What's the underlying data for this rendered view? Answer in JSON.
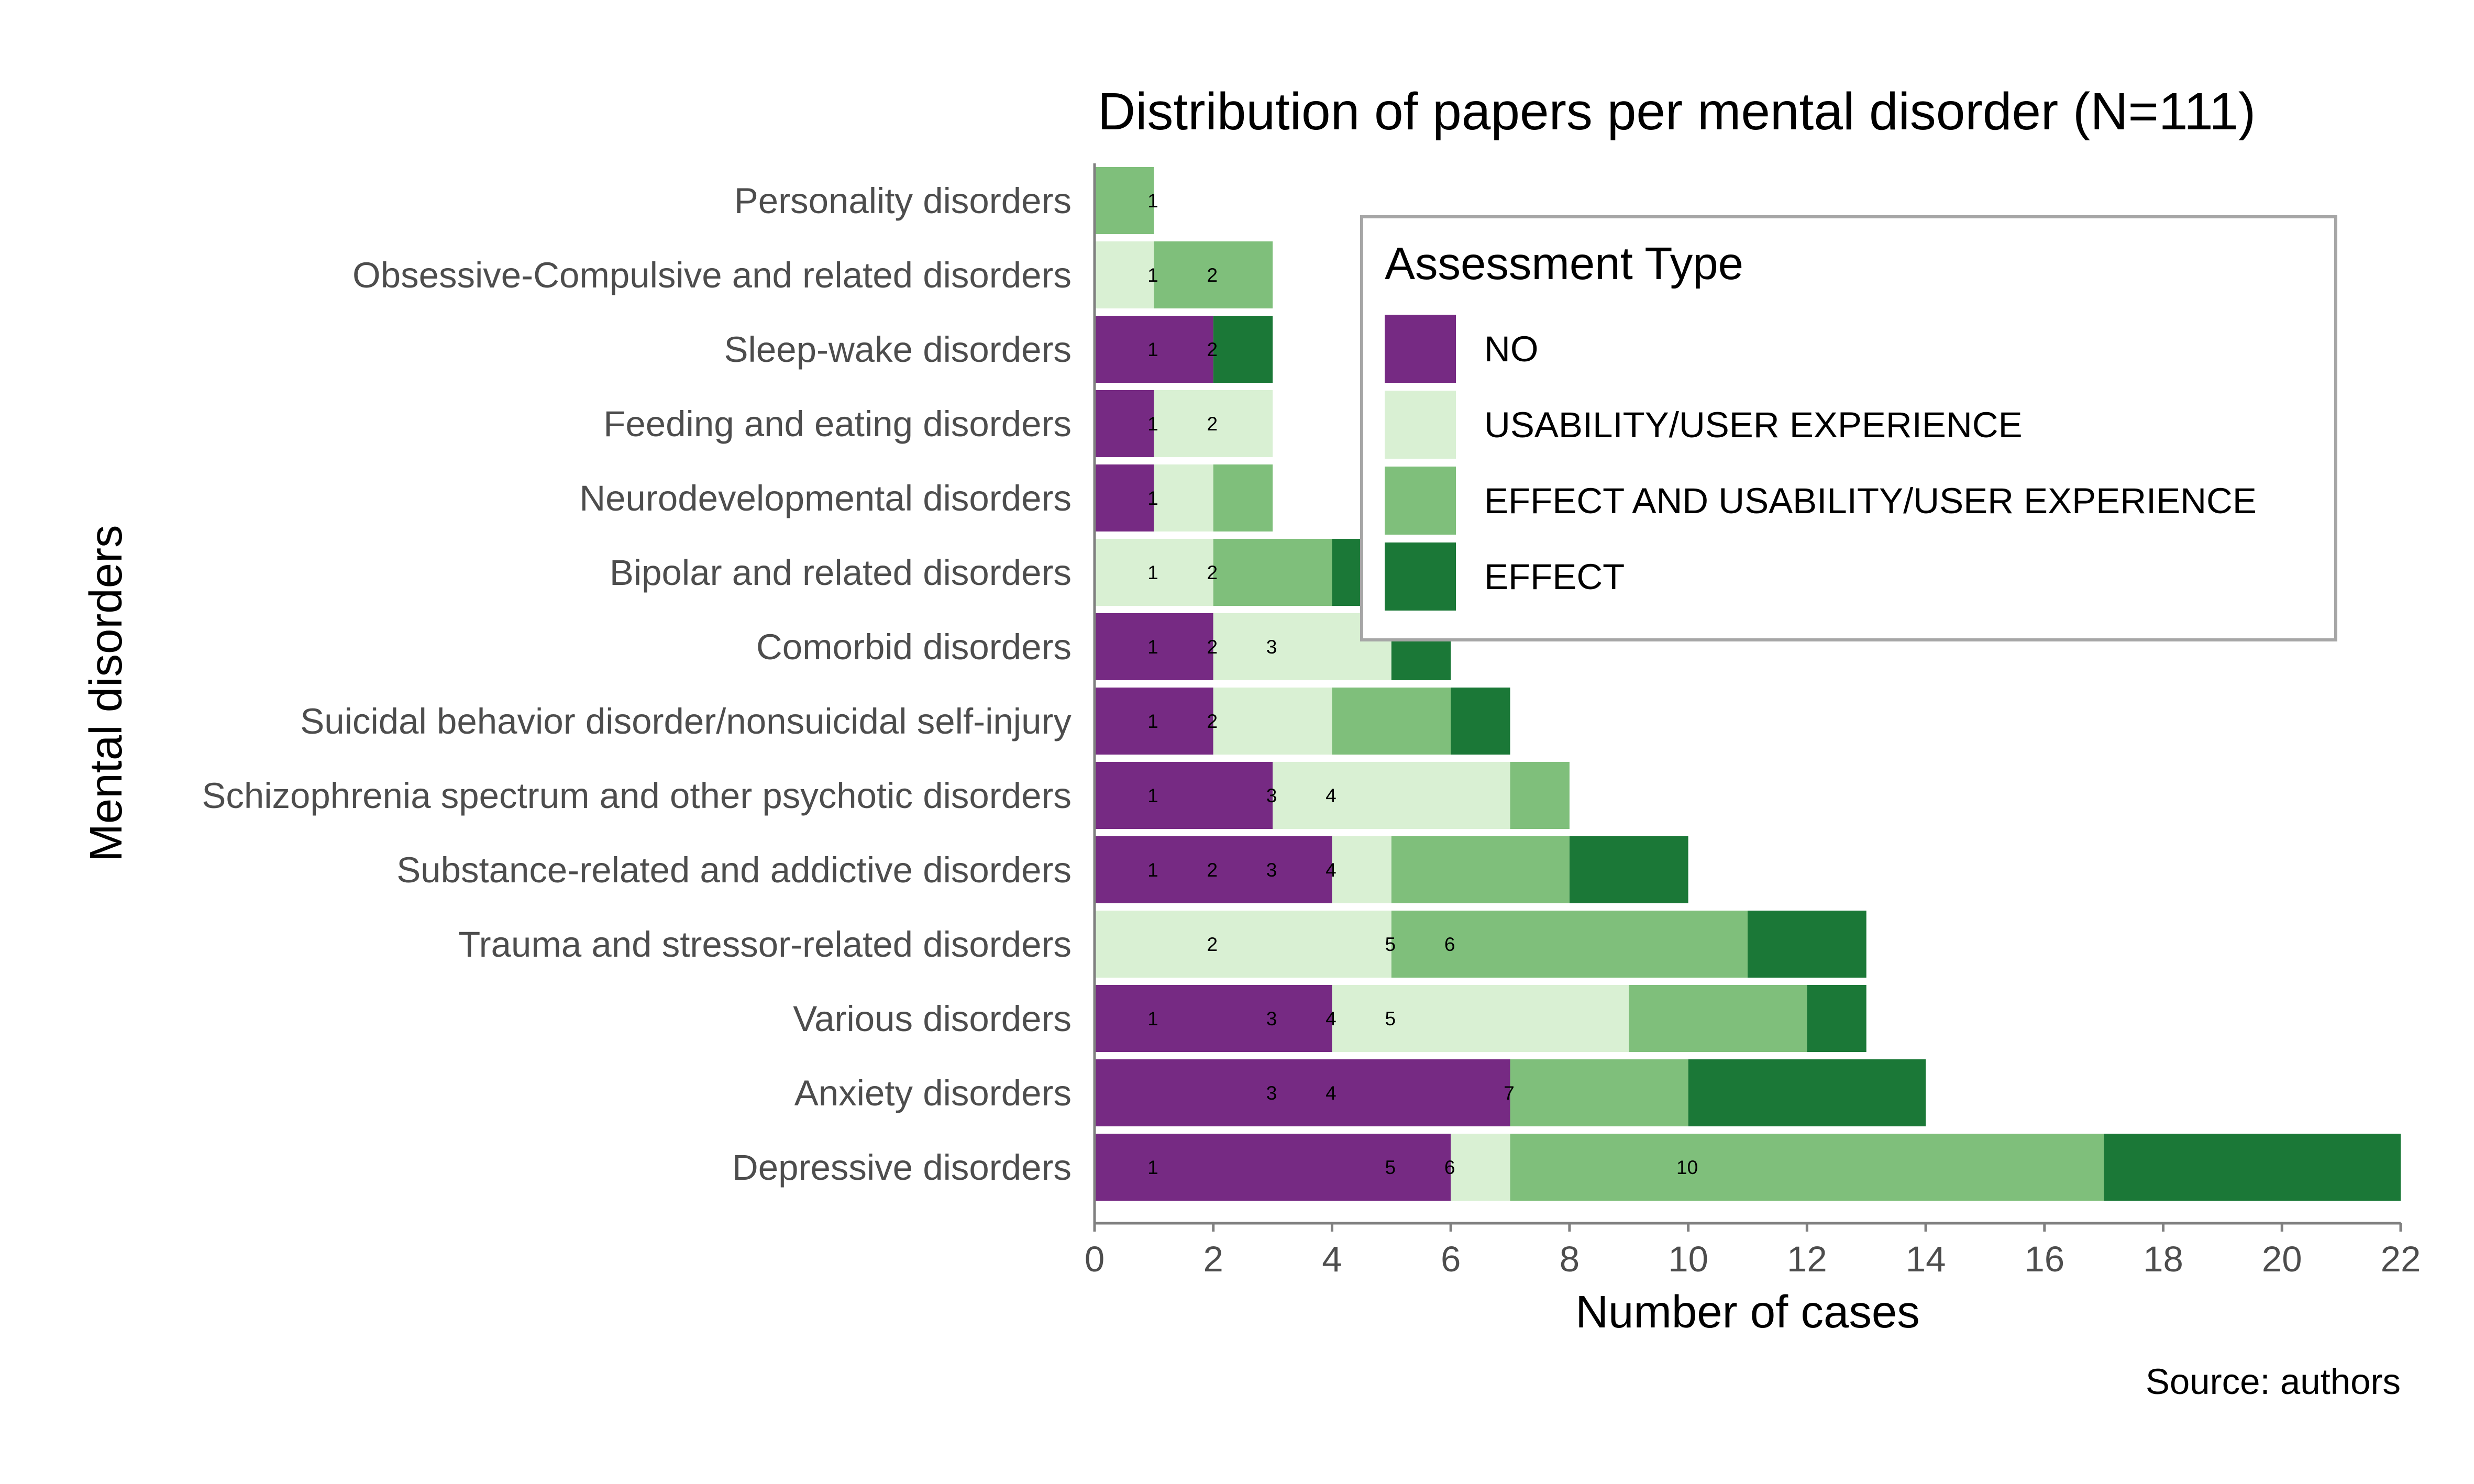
{
  "chart_data": {
    "type": "bar",
    "orientation": "horizontal",
    "stacked": true,
    "title": "Distribution of papers per mental disorder (N=111)",
    "xlabel": "Number of cases",
    "ylabel": "Mental disorders",
    "source": "Source: authors",
    "xlim": [
      0,
      22
    ],
    "xticks": [
      0,
      2,
      4,
      6,
      8,
      10,
      12,
      14,
      16,
      18,
      20,
      22
    ],
    "grid": false,
    "legend": {
      "title": "Assessment Type",
      "position": "top-right"
    },
    "categories": [
      "Personality disorders",
      "Obsessive-Compulsive and related disorders",
      "Sleep-wake disorders",
      "Feeding and eating disorders",
      "Neurodevelopmental disorders",
      "Bipolar and related disorders",
      "Comorbid disorders",
      "Suicidal behavior disorder/nonsuicidal self-injury",
      "Schizophrenia spectrum and other psychotic disorders",
      "Substance-related and addictive disorders",
      "Trauma and stressor-related disorders",
      "Various disorders",
      "Anxiety disorders",
      "Depressive disorders"
    ],
    "series": [
      {
        "name": "NO",
        "color": "#762a83",
        "values": [
          0,
          0,
          2,
          1,
          1,
          0,
          2,
          2,
          3,
          4,
          0,
          4,
          7,
          6
        ]
      },
      {
        "name": "USABILITY/USER EXPERIENCE",
        "color": "#d9f0d3",
        "values": [
          0,
          1,
          0,
          2,
          1,
          2,
          3,
          2,
          4,
          1,
          5,
          5,
          0,
          1
        ]
      },
      {
        "name": "EFFECT AND USABILITY/USER EXPERIENCE",
        "color": "#7fbf7b",
        "values": [
          1,
          2,
          0,
          0,
          1,
          2,
          0,
          2,
          1,
          3,
          6,
          3,
          3,
          10
        ]
      },
      {
        "name": "EFFECT",
        "color": "#1b7837",
        "values": [
          0,
          0,
          1,
          0,
          0,
          1,
          1,
          1,
          0,
          2,
          2,
          1,
          4,
          5
        ]
      }
    ],
    "annotations": [
      {
        "category": 0,
        "x": 1,
        "text": "1"
      },
      {
        "category": 1,
        "x": 1,
        "text": "1"
      },
      {
        "category": 1,
        "x": 2,
        "text": "2"
      },
      {
        "category": 2,
        "x": 1,
        "text": "1"
      },
      {
        "category": 2,
        "x": 2,
        "text": "2"
      },
      {
        "category": 3,
        "x": 1,
        "text": "1"
      },
      {
        "category": 3,
        "x": 2,
        "text": "2"
      },
      {
        "category": 4,
        "x": 1,
        "text": "1"
      },
      {
        "category": 5,
        "x": 1,
        "text": "1"
      },
      {
        "category": 5,
        "x": 2,
        "text": "2"
      },
      {
        "category": 6,
        "x": 1,
        "text": "1"
      },
      {
        "category": 6,
        "x": 2,
        "text": "2"
      },
      {
        "category": 6,
        "x": 3,
        "text": "3"
      },
      {
        "category": 7,
        "x": 1,
        "text": "1"
      },
      {
        "category": 7,
        "x": 2,
        "text": "2"
      },
      {
        "category": 8,
        "x": 1,
        "text": "1"
      },
      {
        "category": 8,
        "x": 3,
        "text": "3"
      },
      {
        "category": 8,
        "x": 4,
        "text": "4"
      },
      {
        "category": 9,
        "x": 1,
        "text": "1"
      },
      {
        "category": 9,
        "x": 2,
        "text": "2"
      },
      {
        "category": 9,
        "x": 3,
        "text": "3"
      },
      {
        "category": 9,
        "x": 4,
        "text": "4"
      },
      {
        "category": 10,
        "x": 2,
        "text": "2"
      },
      {
        "category": 10,
        "x": 5,
        "text": "5"
      },
      {
        "category": 10,
        "x": 6,
        "text": "6"
      },
      {
        "category": 11,
        "x": 1,
        "text": "1"
      },
      {
        "category": 11,
        "x": 3,
        "text": "3"
      },
      {
        "category": 11,
        "x": 4,
        "text": "4"
      },
      {
        "category": 11,
        "x": 5,
        "text": "5"
      },
      {
        "category": 12,
        "x": 3,
        "text": "3"
      },
      {
        "category": 12,
        "x": 4,
        "text": "4"
      },
      {
        "category": 12,
        "x": 7,
        "text": "7"
      },
      {
        "category": 13,
        "x": 1,
        "text": "1"
      },
      {
        "category": 13,
        "x": 5,
        "text": "5"
      },
      {
        "category": 13,
        "x": 6,
        "text": "6"
      },
      {
        "category": 13,
        "x": 10,
        "text": "10"
      }
    ]
  }
}
